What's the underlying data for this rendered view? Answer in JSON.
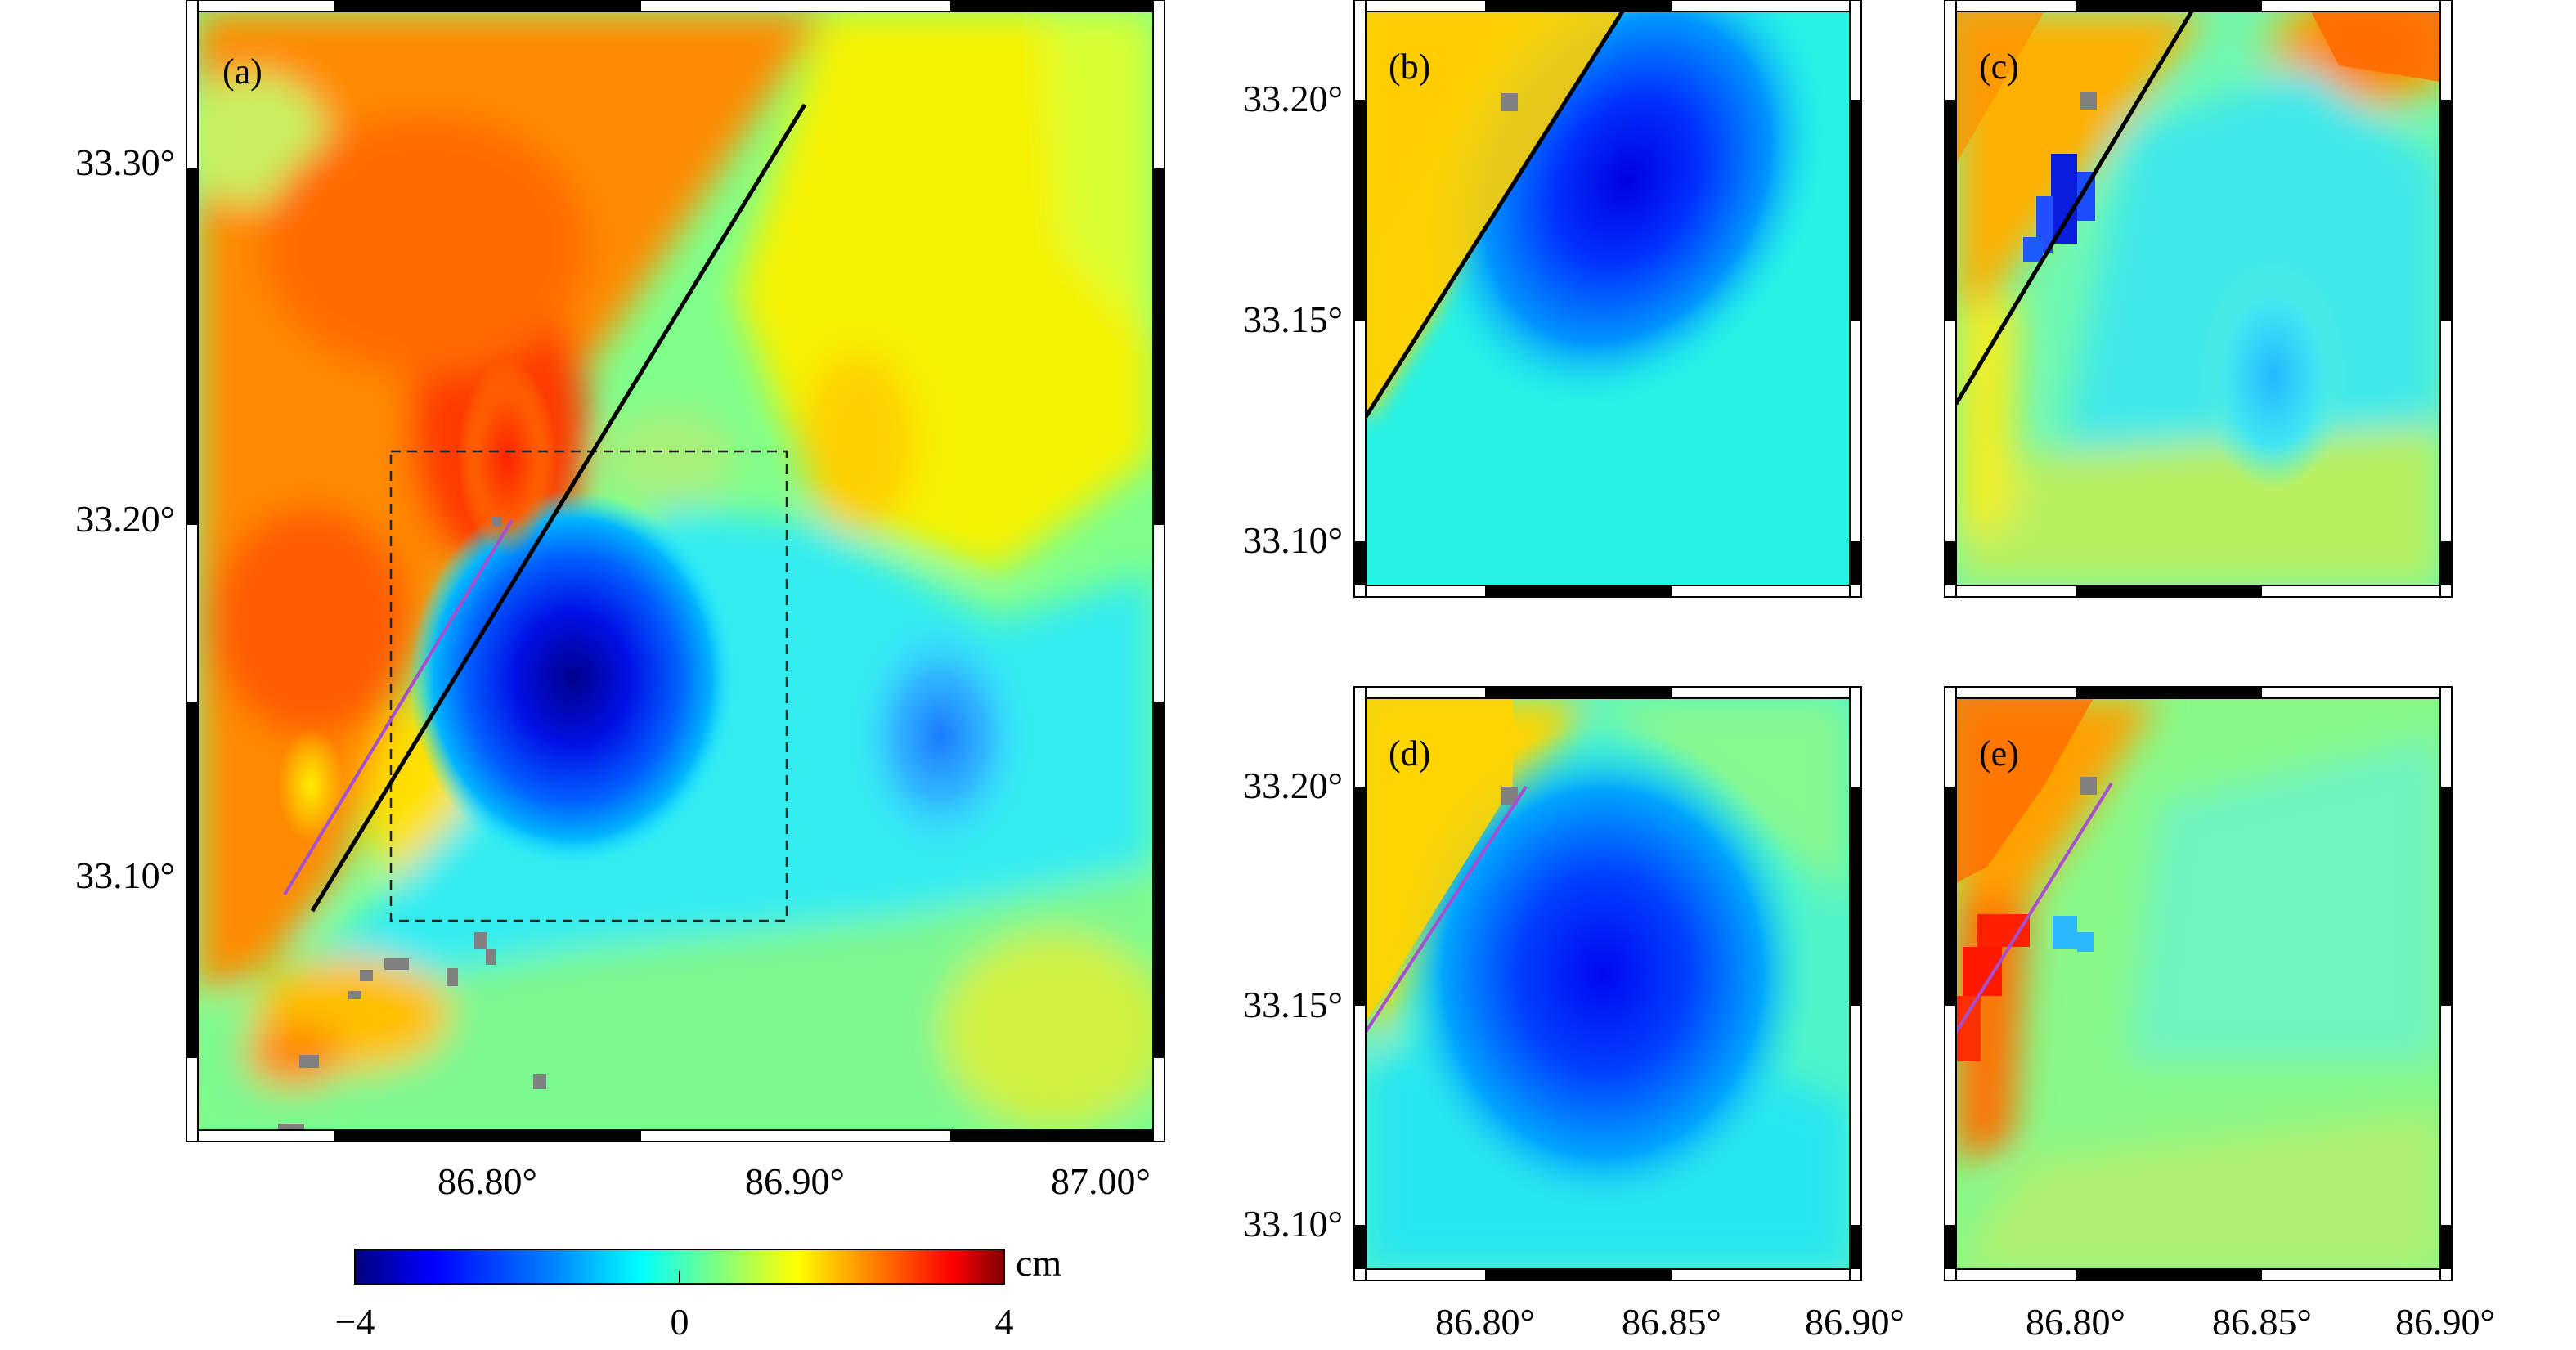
{
  "panels": [
    {
      "id": "a",
      "label": "(a)",
      "lat_ticks": [
        "33.30°",
        "33.20°",
        "33.10°"
      ],
      "lon_ticks": [
        "86.80°",
        "86.90°",
        "87.00°"
      ],
      "fault_trace": "black",
      "model_trace": "purple",
      "inset_box": "dashed"
    },
    {
      "id": "b",
      "label": "(b)",
      "lat_ticks": [
        "33.20°",
        "33.15°",
        "33.10°"
      ],
      "fault_trace": "black"
    },
    {
      "id": "c",
      "label": "(c)",
      "fault_trace": "black"
    },
    {
      "id": "d",
      "label": "(d)",
      "lat_ticks": [
        "33.20°",
        "33.15°",
        "33.10°"
      ],
      "lon_ticks": [
        "86.80°",
        "86.85°",
        "86.90°"
      ],
      "model_trace": "purple"
    },
    {
      "id": "e",
      "label": "(e)",
      "lon_ticks": [
        "86.80°",
        "86.85°",
        "86.90°"
      ],
      "model_trace": "purple"
    }
  ],
  "colorbar": {
    "unit": "cm",
    "ticks": [
      "−4",
      "0",
      "4"
    ],
    "min": -4,
    "max": 4,
    "colormap": [
      "#00007f",
      "#0000ff",
      "#007fff",
      "#00ffff",
      "#7fff7f",
      "#ffff00",
      "#ff7f00",
      "#ff0000",
      "#7f0000"
    ]
  },
  "colors": {
    "fault": "#000000",
    "model_fault": "#a64fd1",
    "nodata": "#808080"
  }
}
